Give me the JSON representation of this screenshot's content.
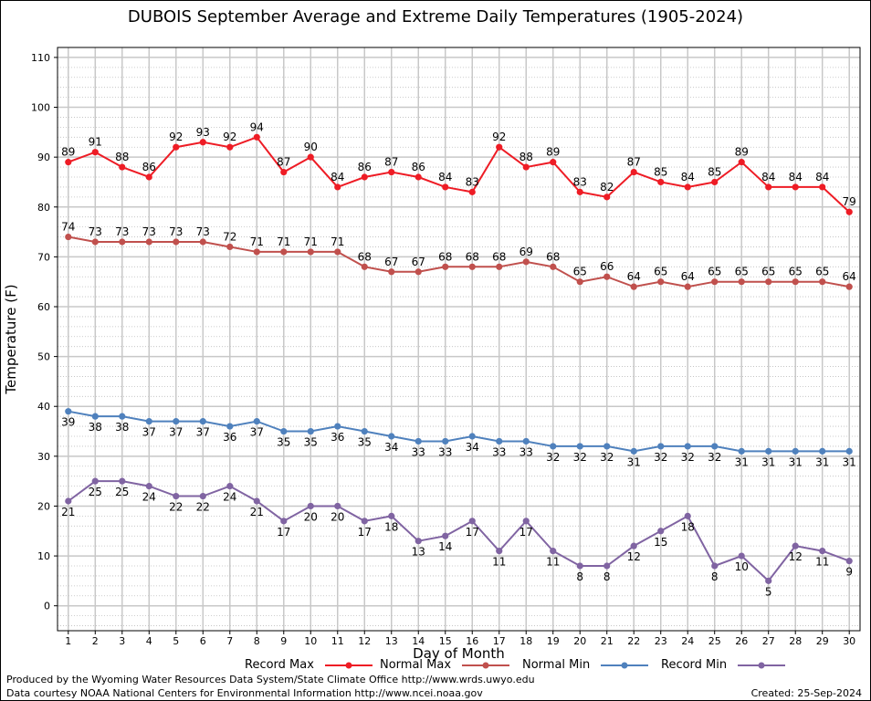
{
  "chart_data": {
    "type": "line",
    "title": "DUBOIS September Average and Extreme Daily Temperatures (1905-2024)",
    "xlabel": "Day of Month",
    "ylabel": "Temperature (F)",
    "x": [
      1,
      2,
      3,
      4,
      5,
      6,
      7,
      8,
      9,
      10,
      11,
      12,
      13,
      14,
      15,
      16,
      17,
      18,
      19,
      20,
      21,
      22,
      23,
      24,
      25,
      26,
      27,
      28,
      29,
      30
    ],
    "xlim": [
      0.6,
      30.4
    ],
    "ylim": [
      -5,
      112
    ],
    "yticks": [
      0,
      10,
      20,
      30,
      40,
      50,
      60,
      70,
      80,
      90,
      100,
      110
    ],
    "grid": true,
    "legend_position": "bottom",
    "series": [
      {
        "name": "Record Max",
        "color": "#ee1c25",
        "label_position": "above",
        "values": [
          89,
          91,
          88,
          86,
          92,
          93,
          92,
          94,
          87,
          90,
          84,
          86,
          87,
          86,
          84,
          83,
          92,
          88,
          89,
          83,
          82,
          87,
          85,
          84,
          85,
          89,
          84,
          84,
          84,
          79
        ]
      },
      {
        "name": "Normal Max",
        "color": "#c0504d",
        "label_position": "above",
        "values": [
          74,
          73,
          73,
          73,
          73,
          73,
          72,
          71,
          71,
          71,
          71,
          68,
          67,
          67,
          68,
          68,
          68,
          69,
          68,
          65,
          66,
          64,
          65,
          64,
          65,
          65,
          65,
          65,
          65,
          64
        ]
      },
      {
        "name": "Normal Min",
        "color": "#4f81bd",
        "label_position": "below",
        "values": [
          39,
          38,
          38,
          37,
          37,
          37,
          36,
          37,
          35,
          35,
          36,
          35,
          34,
          33,
          33,
          34,
          33,
          33,
          32,
          32,
          32,
          31,
          32,
          32,
          32,
          31,
          31,
          31,
          31,
          31
        ]
      },
      {
        "name": "Record Min",
        "color": "#8064a2",
        "label_position": "below",
        "values": [
          21,
          25,
          25,
          24,
          22,
          22,
          24,
          21,
          17,
          20,
          20,
          17,
          18,
          13,
          14,
          17,
          11,
          17,
          11,
          8,
          8,
          12,
          15,
          18,
          8,
          10,
          5,
          12,
          11,
          9
        ]
      }
    ]
  },
  "footer": {
    "produced_by": "Produced by the Wyoming Water Resources Data System/State Climate Office http://www.wrds.uwyo.edu",
    "data_courtesy": "Data courtesy NOAA National Centers for Environmental Information http://www.ncei.noaa.gov",
    "created": "Created:  25-Sep-2024"
  }
}
